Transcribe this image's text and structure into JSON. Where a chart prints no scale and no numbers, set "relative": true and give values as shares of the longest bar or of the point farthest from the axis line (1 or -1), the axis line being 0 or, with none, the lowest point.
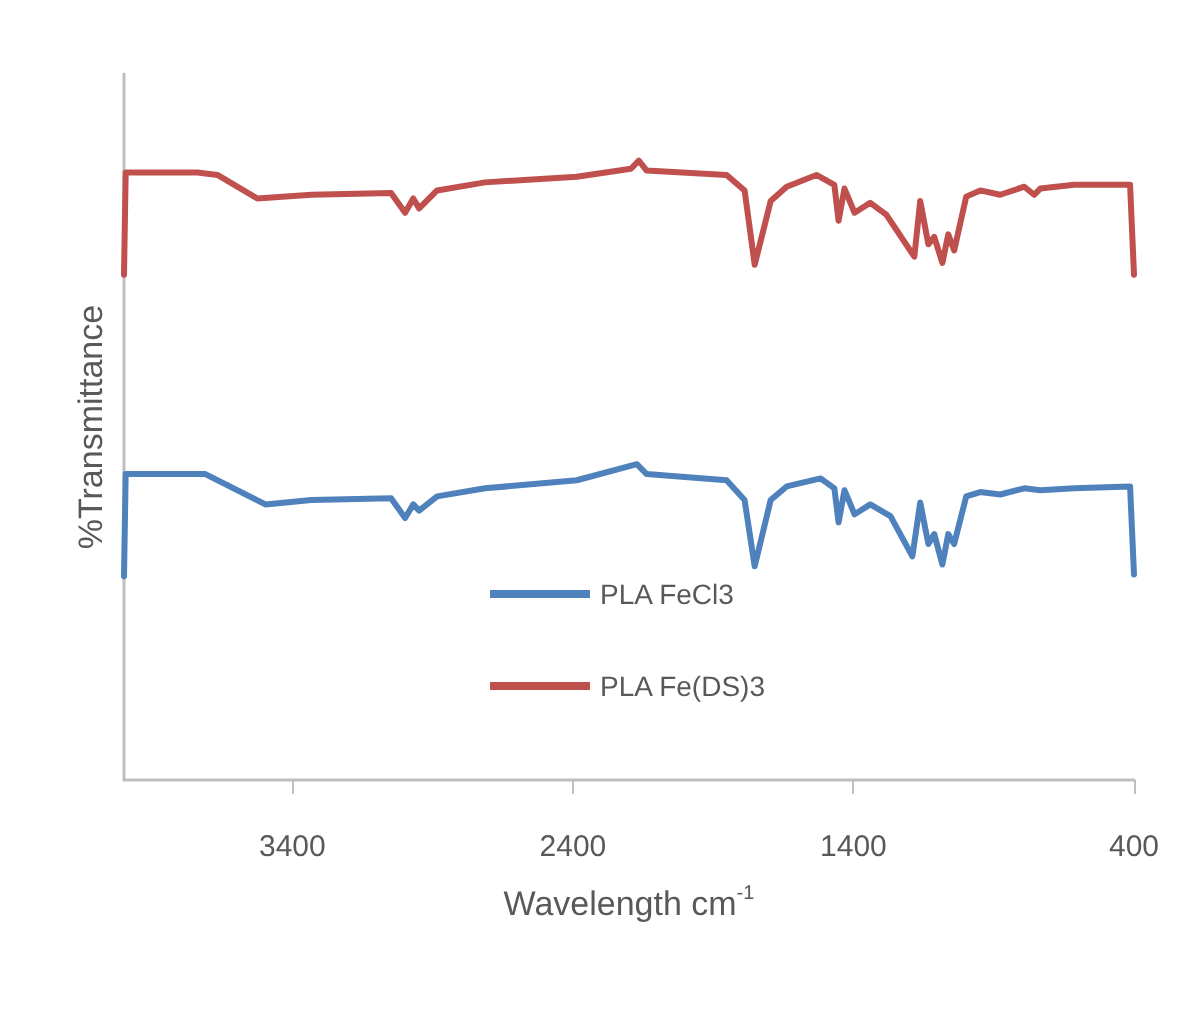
{
  "chart_data": {
    "type": "line",
    "xlabel": "Wavelength cm$^{-1}$",
    "ylabel": "%Transmittance",
    "relative": true,
    "xlim": [
      4000,
      400
    ],
    "xticks": [
      3400,
      2400,
      1400,
      400
    ],
    "legend": "bottom",
    "grid": false,
    "series": [
      {
        "name": "PLA FeCl3",
        "color": "#4f81bd",
        "x": [
          4000,
          3994,
          3710,
          3496,
          3332,
          3048,
          2998,
          2969,
          2948,
          2884,
          2713,
          2386,
          2172,
          2137,
          1852,
          1788,
          1752,
          1695,
          1638,
          1517,
          1468,
          1453,
          1432,
          1396,
          1340,
          1268,
          1190,
          1162,
          1133,
          1112,
          1083,
          1062,
          1041,
          998,
          948,
          877,
          791,
          734,
          613,
          414,
          400
        ],
        "values": [
          0.329,
          0.494,
          0.494,
          0.445,
          0.452,
          0.455,
          0.423,
          0.445,
          0.435,
          0.458,
          0.471,
          0.484,
          0.51,
          0.494,
          0.484,
          0.452,
          0.345,
          0.452,
          0.474,
          0.487,
          0.471,
          0.416,
          0.468,
          0.429,
          0.445,
          0.426,
          0.361,
          0.448,
          0.381,
          0.397,
          0.348,
          0.397,
          0.381,
          0.458,
          0.465,
          0.461,
          0.471,
          0.468,
          0.471,
          0.474,
          0.332
        ]
      },
      {
        "name": "PLA Fe(DS)3",
        "color": "#c0504d",
        "x": [
          4000,
          3994,
          3738,
          3667,
          3525,
          3332,
          3048,
          2998,
          2969,
          2948,
          2884,
          2713,
          2386,
          2193,
          2165,
          2137,
          1852,
          1788,
          1752,
          1695,
          1638,
          1532,
          1468,
          1453,
          1432,
          1396,
          1340,
          1283,
          1183,
          1162,
          1133,
          1112,
          1083,
          1062,
          1041,
          998,
          948,
          877,
          791,
          756,
          734,
          613,
          414,
          400
        ],
        "values": [
          0.816,
          0.981,
          0.981,
          0.977,
          0.939,
          0.945,
          0.948,
          0.916,
          0.939,
          0.923,
          0.952,
          0.965,
          0.974,
          0.987,
          1.0,
          0.984,
          0.977,
          0.952,
          0.832,
          0.935,
          0.958,
          0.977,
          0.961,
          0.903,
          0.955,
          0.916,
          0.932,
          0.913,
          0.845,
          0.935,
          0.865,
          0.877,
          0.835,
          0.881,
          0.855,
          0.942,
          0.952,
          0.945,
          0.958,
          0.945,
          0.955,
          0.961,
          0.961,
          0.816
        ]
      }
    ]
  }
}
